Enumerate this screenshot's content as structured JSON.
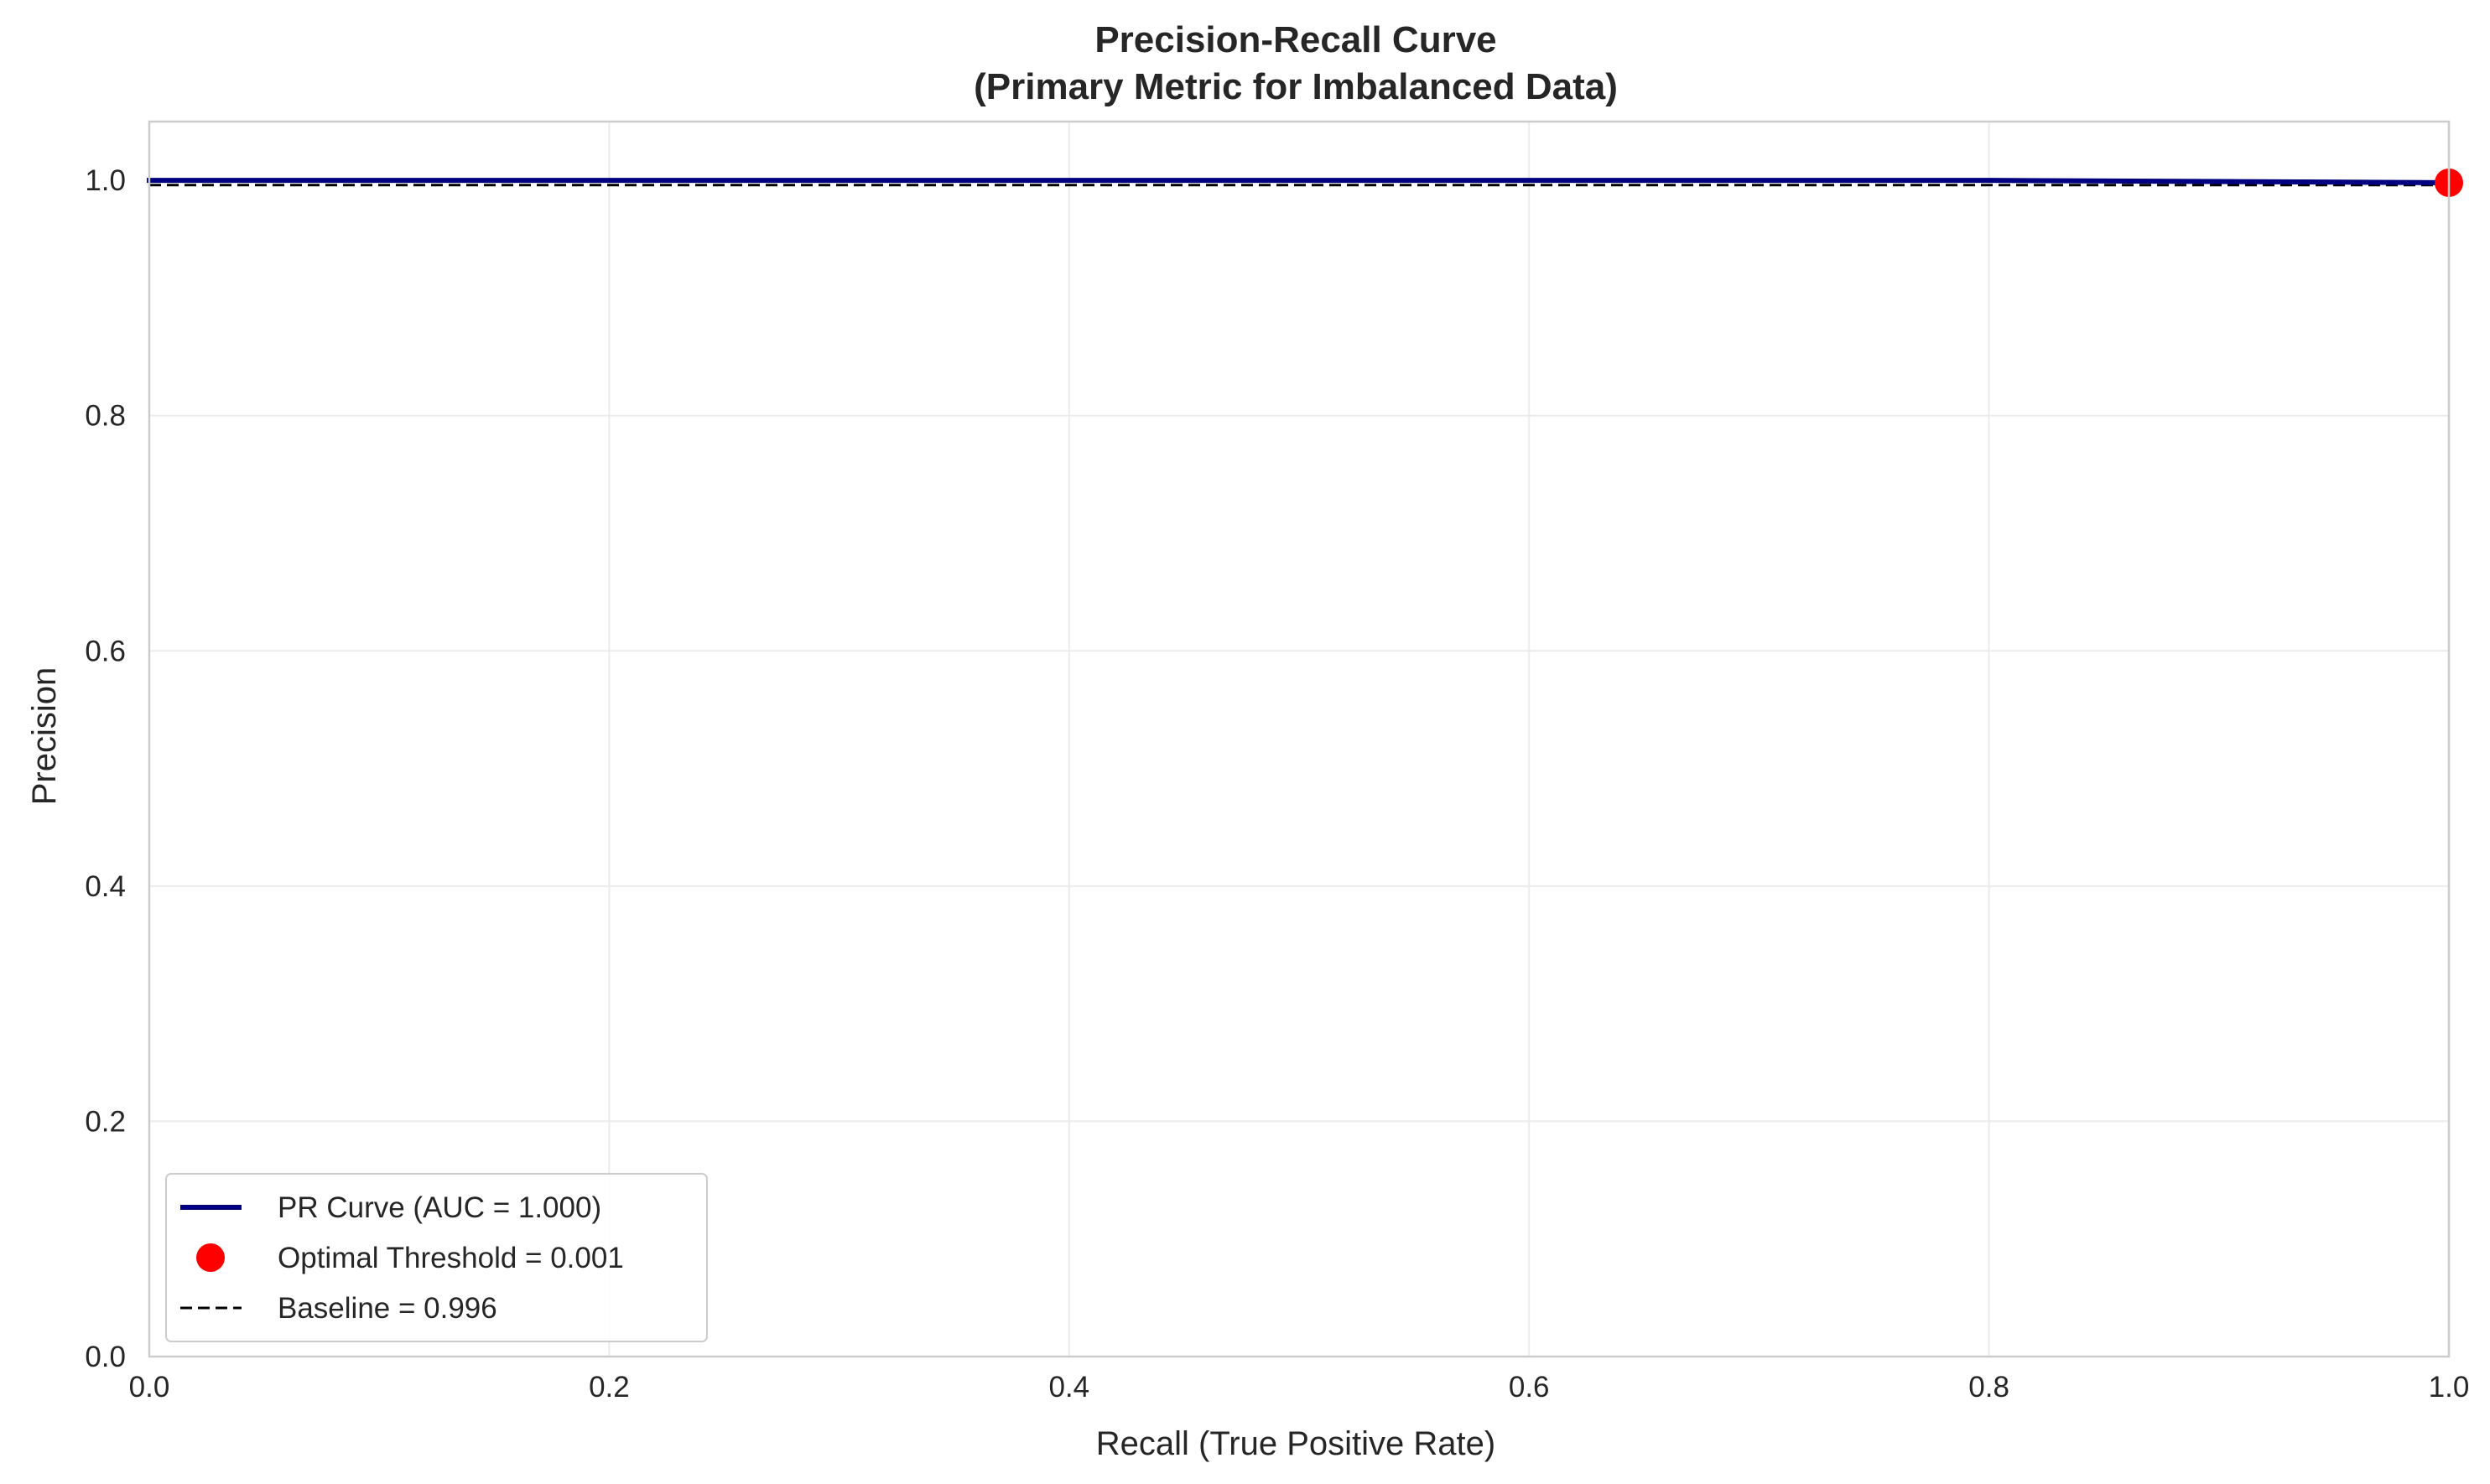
{
  "chart_data": {
    "type": "line",
    "title": "Precision-Recall Curve",
    "subtitle": "(Primary Metric for Imbalanced Data)",
    "xlabel": "Recall (True Positive Rate)",
    "ylabel": "Precision",
    "xlim": [
      0.0,
      1.0
    ],
    "ylim": [
      0.0,
      1.05
    ],
    "x_ticks": [
      "0.0",
      "0.2",
      "0.4",
      "0.6",
      "0.8",
      "1.0"
    ],
    "y_ticks": [
      "0.0",
      "0.2",
      "0.4",
      "0.6",
      "0.8",
      "1.0"
    ],
    "grid": true,
    "legend_position": "lower-left",
    "series": [
      {
        "name": "PR Curve (AUC = 1.000)",
        "kind": "line",
        "color": "#000080",
        "x": [
          0.0,
          0.2,
          0.4,
          0.6,
          0.8,
          0.9,
          1.0
        ],
        "y": [
          1.0,
          1.0,
          1.0,
          1.0,
          1.0,
          0.999,
          0.998
        ]
      },
      {
        "name": "Optimal Threshold = 0.001",
        "kind": "point",
        "color": "#ff0000",
        "x": [
          1.0
        ],
        "y": [
          0.998
        ]
      },
      {
        "name": "Baseline = 0.996",
        "kind": "dashed-line",
        "color": "#000000",
        "y_value": 0.996
      }
    ]
  }
}
